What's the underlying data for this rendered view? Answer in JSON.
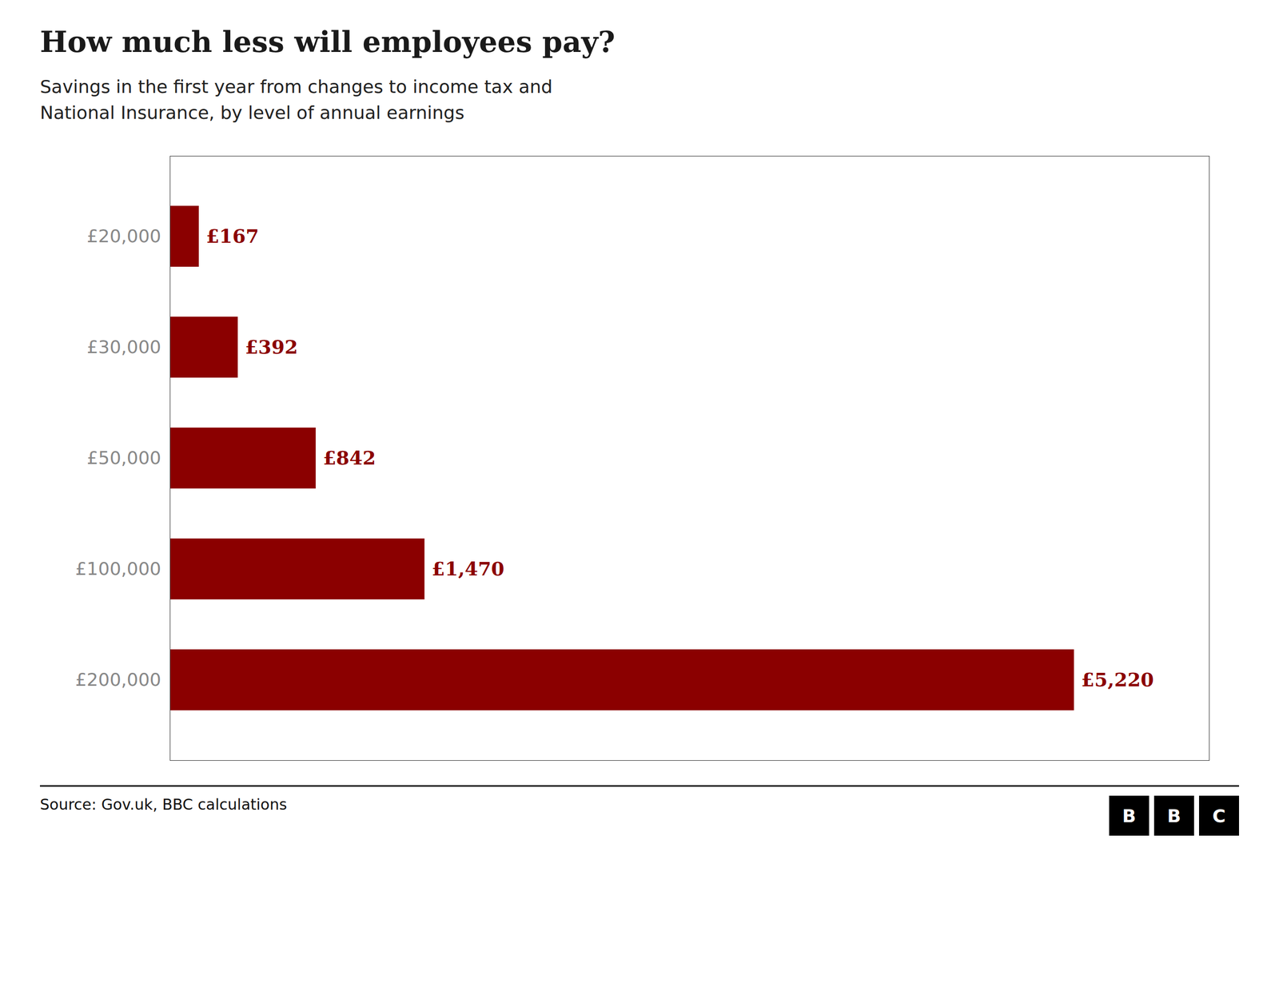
{
  "chart_data": {
    "type": "bar",
    "orientation": "horizontal",
    "title": "How much less will employees pay?",
    "subtitle": "Savings in the first year from changes to income tax and\nNational Insurance, by level of annual earnings",
    "categories": [
      "£20,000",
      "£30,000",
      "£50,000",
      "£100,000",
      "£200,000"
    ],
    "values": [
      167,
      392,
      842,
      1470,
      5220
    ],
    "value_labels": [
      "£167",
      "£392",
      "£842",
      "£1,470",
      "£5,220"
    ],
    "data_labels": true,
    "color": "#8B0000",
    "xlim": [
      0,
      6000
    ],
    "xticks": [],
    "tick_labels": "y",
    "grid": false,
    "source": "Source: Gov.uk, BBC calculations",
    "logo": [
      "B",
      "B",
      "C"
    ]
  }
}
